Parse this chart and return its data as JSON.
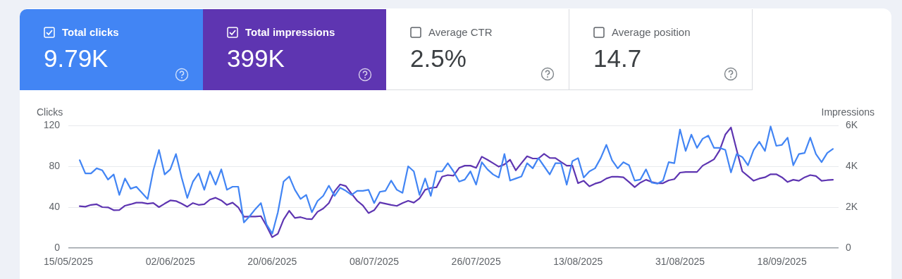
{
  "chart_data": [
    {
      "type": "other",
      "categories": [
        "Total clicks",
        "Total impressions",
        "Average CTR",
        "Average position"
      ],
      "value_labels": [
        "9.79K",
        "399K",
        "2.5%",
        "14.7"
      ],
      "colors": [
        "#4285f4",
        "#5e35b1",
        "#ffffff",
        "#ffffff"
      ]
    },
    {
      "type": "line",
      "ylabel": "Clicks",
      "y2label": "Impressions",
      "x": [
        "2025-05-17",
        "2025-05-18",
        "2025-05-19",
        "2025-05-20",
        "2025-05-21",
        "2025-05-22",
        "2025-05-23",
        "2025-05-24",
        "2025-05-25",
        "2025-05-26",
        "2025-05-27",
        "2025-05-28",
        "2025-05-29",
        "2025-05-30",
        "2025-05-31",
        "2025-06-01",
        "2025-06-02",
        "2025-06-03",
        "2025-06-04",
        "2025-06-05",
        "2025-06-06",
        "2025-06-07",
        "2025-06-08",
        "2025-06-09",
        "2025-06-10",
        "2025-06-11",
        "2025-06-12",
        "2025-06-13",
        "2025-06-14",
        "2025-06-15",
        "2025-06-16",
        "2025-06-17",
        "2025-06-18",
        "2025-06-19",
        "2025-06-20",
        "2025-06-21",
        "2025-06-22",
        "2025-06-23",
        "2025-06-24",
        "2025-06-25",
        "2025-06-26",
        "2025-06-27",
        "2025-06-28",
        "2025-06-29",
        "2025-06-30",
        "2025-07-01",
        "2025-07-02",
        "2025-07-03",
        "2025-07-04",
        "2025-07-05",
        "2025-07-06",
        "2025-07-07",
        "2025-07-08",
        "2025-07-09",
        "2025-07-10",
        "2025-07-11",
        "2025-07-12",
        "2025-07-13",
        "2025-07-14",
        "2025-07-15",
        "2025-07-16",
        "2025-07-17",
        "2025-07-18",
        "2025-07-19",
        "2025-07-20",
        "2025-07-21",
        "2025-07-22",
        "2025-07-23",
        "2025-07-24",
        "2025-07-25",
        "2025-07-26",
        "2025-07-27",
        "2025-07-28",
        "2025-07-29",
        "2025-07-30",
        "2025-07-31",
        "2025-08-01",
        "2025-08-02",
        "2025-08-03",
        "2025-08-04",
        "2025-08-05",
        "2025-08-06",
        "2025-08-07",
        "2025-08-08",
        "2025-08-09",
        "2025-08-10",
        "2025-08-11",
        "2025-08-12",
        "2025-08-13",
        "2025-08-14",
        "2025-08-15",
        "2025-08-16",
        "2025-08-17",
        "2025-08-18",
        "2025-08-19",
        "2025-08-20",
        "2025-08-21",
        "2025-08-22",
        "2025-08-23",
        "2025-08-24",
        "2025-08-25",
        "2025-08-26",
        "2025-08-27",
        "2025-08-28",
        "2025-08-29",
        "2025-08-30",
        "2025-08-31",
        "2025-09-01",
        "2025-09-02",
        "2025-09-03",
        "2025-09-04",
        "2025-09-05",
        "2025-09-06",
        "2025-09-07",
        "2025-09-08",
        "2025-09-09",
        "2025-09-10",
        "2025-09-11",
        "2025-09-12",
        "2025-09-13",
        "2025-09-14",
        "2025-09-15",
        "2025-09-16",
        "2025-09-17",
        "2025-09-18",
        "2025-09-19",
        "2025-09-20",
        "2025-09-21",
        "2025-09-22",
        "2025-09-23",
        "2025-09-24",
        "2025-09-25",
        "2025-09-26",
        "2025-09-27"
      ],
      "series": [
        {
          "color": "#4285f4",
          "values": [
            86,
            73,
            73,
            78,
            76,
            67,
            72,
            52,
            68,
            58,
            60,
            54,
            48,
            76,
            96,
            72,
            77,
            92,
            69,
            49,
            65,
            73,
            57,
            75,
            62,
            77,
            57,
            60,
            60,
            25,
            31,
            38,
            44,
            23,
            14,
            35,
            65,
            70,
            57,
            48,
            52,
            35,
            46,
            51,
            61,
            51,
            59,
            56,
            52,
            56,
            56,
            57,
            44,
            55,
            56,
            66,
            57,
            54,
            80,
            75,
            52,
            68,
            51,
            75,
            75,
            83,
            75,
            65,
            67,
            75,
            62,
            84,
            77,
            72,
            69,
            92,
            66,
            68,
            70,
            83,
            78,
            88,
            80,
            72,
            83,
            83,
            62,
            85,
            88,
            69,
            75,
            78,
            88,
            101,
            86,
            78,
            84,
            81,
            66,
            67,
            77,
            64,
            63,
            66,
            84,
            83,
            116,
            95,
            111,
            98,
            107,
            110,
            98,
            98,
            96,
            74,
            92,
            89,
            81,
            96,
            104,
            95,
            119,
            100,
            101,
            108,
            81,
            92,
            93,
            108,
            92,
            84,
            93,
            97
          ]
        },
        {
          "color": "#5e35b1",
          "axis": "y2",
          "values": [
            2050,
            2020,
            2110,
            2140,
            2000,
            1990,
            1850,
            1860,
            2070,
            2140,
            2220,
            2220,
            2170,
            2200,
            2000,
            2170,
            2330,
            2300,
            2170,
            2020,
            2200,
            2110,
            2140,
            2370,
            2460,
            2330,
            2110,
            2220,
            1990,
            1530,
            1540,
            1540,
            1560,
            1080,
            530,
            700,
            1390,
            1820,
            1470,
            1510,
            1430,
            1410,
            1770,
            1930,
            2200,
            2770,
            3110,
            3030,
            2660,
            2310,
            2080,
            1710,
            1850,
            2230,
            2170,
            2110,
            2060,
            2200,
            2310,
            2220,
            2430,
            2850,
            2940,
            2970,
            3490,
            3570,
            3540,
            3920,
            4030,
            4030,
            3920,
            4470,
            4320,
            4150,
            3980,
            4090,
            4320,
            3800,
            4150,
            4490,
            4380,
            4380,
            4610,
            4410,
            4400,
            4210,
            4030,
            4030,
            3170,
            3290,
            3020,
            3150,
            3230,
            3400,
            3490,
            3490,
            3460,
            3230,
            2980,
            3200,
            3340,
            3230,
            3170,
            3170,
            3310,
            3370,
            3690,
            3720,
            3720,
            3720,
            4030,
            4180,
            4340,
            4780,
            5550,
            5900,
            4800,
            3750,
            3520,
            3290,
            3400,
            3460,
            3610,
            3610,
            3460,
            3230,
            3340,
            3290,
            3460,
            3570,
            3520,
            3290,
            3320,
            3340
          ]
        }
      ],
      "xlim": [
        "2025-05-15",
        "2025-09-28"
      ],
      "xticks": [
        {
          "value": "2025-05-15",
          "label": "15/05/2025"
        },
        {
          "value": "2025-06-02",
          "label": "02/06/2025"
        },
        {
          "value": "2025-06-20",
          "label": "20/06/2025"
        },
        {
          "value": "2025-07-08",
          "label": "08/07/2025"
        },
        {
          "value": "2025-07-26",
          "label": "26/07/2025"
        },
        {
          "value": "2025-08-13",
          "label": "13/08/2025"
        },
        {
          "value": "2025-08-31",
          "label": "31/08/2025"
        },
        {
          "value": "2025-09-18",
          "label": "18/09/2025"
        }
      ],
      "ylim": [
        0,
        120
      ],
      "yticks": [
        0,
        40,
        80,
        120
      ],
      "y2lim": [
        0,
        6000
      ],
      "y2ticks": [
        {
          "value": 0,
          "label": "0"
        },
        {
          "value": 2000,
          "label": "2K"
        },
        {
          "value": 4000,
          "label": "4K"
        },
        {
          "value": 6000,
          "label": "6K"
        }
      ],
      "grid": "y",
      "marker": "none",
      "line_style": "solid"
    }
  ]
}
